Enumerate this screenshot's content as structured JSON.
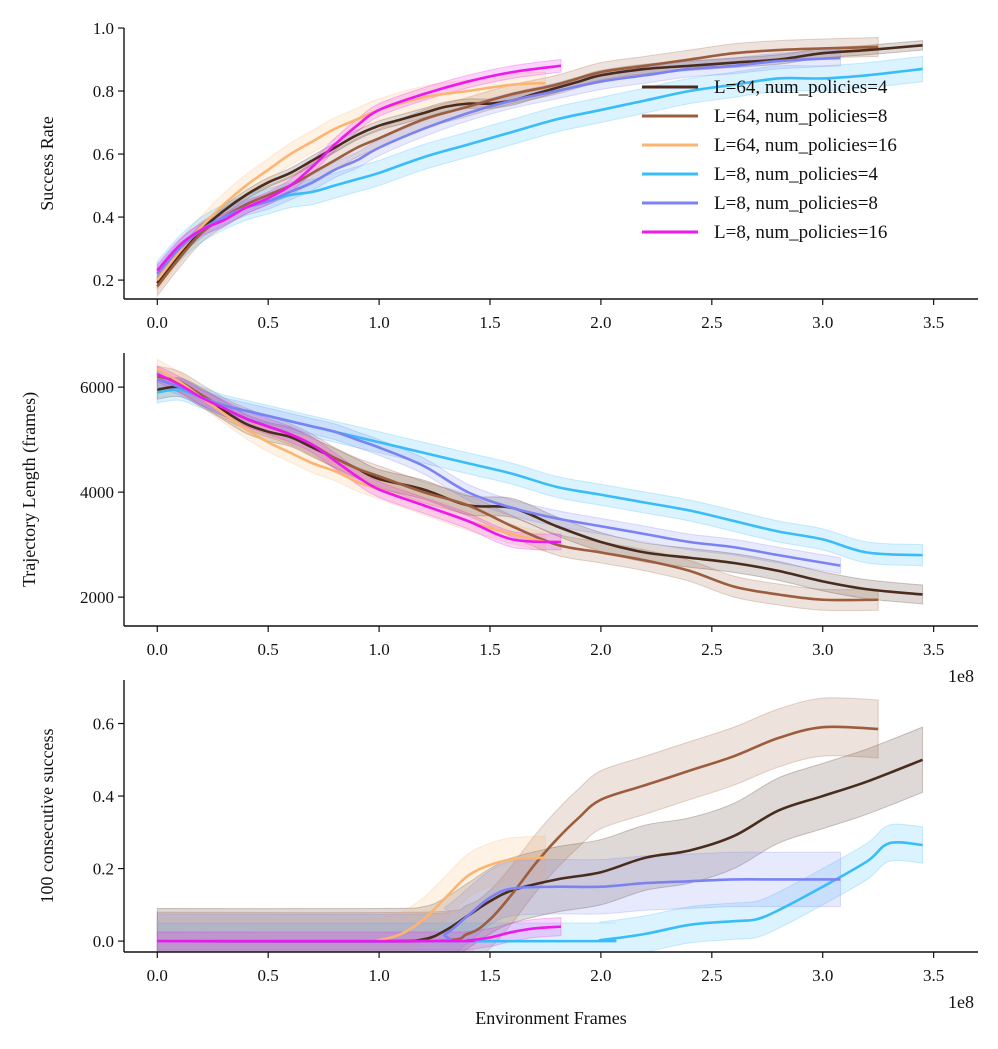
{
  "figure": {
    "xlabel": "Environment Frames",
    "x_multiplier": "1e8",
    "x_ticks": [
      0.0,
      0.5,
      1.0,
      1.5,
      2.0,
      2.5,
      3.0,
      3.5
    ]
  },
  "legend": {
    "location": "right",
    "entries": [
      {
        "label": "L=64, num_policies=4",
        "color": "#4a2c1e"
      },
      {
        "label": "L=64, num_policies=8",
        "color": "#9c5d3e"
      },
      {
        "label": "L=64, num_policies=16",
        "color": "#fcb571"
      },
      {
        "label": "L=8, num_policies=4",
        "color": "#38bdf8"
      },
      {
        "label": "L=8, num_policies=8",
        "color": "#7b83f3"
      },
      {
        "label": "L=8, num_policies=16",
        "color": "#ee18ee"
      }
    ]
  },
  "chart_data": [
    {
      "type": "line",
      "ylabel": "Success Rate",
      "xlim": [
        -0.15,
        3.7
      ],
      "ylim": [
        0.14,
        1.0
      ],
      "y_ticks": [
        0.2,
        0.4,
        0.6,
        0.8,
        1.0
      ],
      "y_tick_labels": [
        "0.2",
        "0.4",
        "0.6",
        "0.8",
        "1.0"
      ],
      "show_x_multiplier": false,
      "series": [
        {
          "name": "L=64, num_policies=4",
          "color": "#4a2c1e",
          "band": 0.015,
          "x": [
            0,
            0.1,
            0.2,
            0.3,
            0.4,
            0.5,
            0.6,
            0.7,
            0.8,
            0.9,
            1.0,
            1.1,
            1.2,
            1.3,
            1.4,
            1.5,
            1.6,
            1.7,
            1.8,
            1.9,
            2.0,
            2.2,
            2.4,
            2.6,
            2.8,
            3.0,
            3.2,
            3.45
          ],
          "y": [
            0.19,
            0.28,
            0.36,
            0.42,
            0.47,
            0.51,
            0.54,
            0.58,
            0.62,
            0.66,
            0.69,
            0.71,
            0.73,
            0.75,
            0.76,
            0.76,
            0.77,
            0.79,
            0.81,
            0.83,
            0.85,
            0.87,
            0.88,
            0.89,
            0.9,
            0.92,
            0.93,
            0.945
          ]
        },
        {
          "name": "L=64, num_policies=8",
          "color": "#9c5d3e",
          "band": 0.03,
          "x": [
            0,
            0.1,
            0.2,
            0.3,
            0.4,
            0.5,
            0.6,
            0.7,
            0.8,
            0.9,
            1.0,
            1.2,
            1.4,
            1.6,
            1.8,
            2.0,
            2.2,
            2.4,
            2.6,
            2.8,
            3.0,
            3.25
          ],
          "y": [
            0.18,
            0.27,
            0.35,
            0.4,
            0.44,
            0.47,
            0.5,
            0.54,
            0.58,
            0.62,
            0.65,
            0.71,
            0.75,
            0.79,
            0.82,
            0.86,
            0.88,
            0.9,
            0.92,
            0.93,
            0.935,
            0.94
          ]
        },
        {
          "name": "L=64, num_policies=16",
          "color": "#fcb571",
          "band": 0.035,
          "x": [
            0,
            0.1,
            0.2,
            0.3,
            0.4,
            0.5,
            0.6,
            0.7,
            0.8,
            0.9,
            1.0,
            1.2,
            1.4,
            1.6,
            1.75
          ],
          "y": [
            0.2,
            0.29,
            0.37,
            0.44,
            0.5,
            0.55,
            0.6,
            0.64,
            0.68,
            0.71,
            0.74,
            0.78,
            0.8,
            0.82,
            0.825
          ]
        },
        {
          "name": "L=8, num_policies=4",
          "color": "#38bdf8",
          "band": 0.04,
          "x": [
            0,
            0.1,
            0.2,
            0.3,
            0.4,
            0.5,
            0.6,
            0.7,
            0.8,
            0.9,
            1.0,
            1.2,
            1.4,
            1.6,
            1.8,
            2.0,
            2.2,
            2.4,
            2.6,
            2.8,
            3.0,
            3.2,
            3.45
          ],
          "y": [
            0.22,
            0.3,
            0.36,
            0.4,
            0.43,
            0.45,
            0.47,
            0.48,
            0.5,
            0.52,
            0.54,
            0.59,
            0.63,
            0.67,
            0.71,
            0.74,
            0.77,
            0.8,
            0.82,
            0.84,
            0.84,
            0.85,
            0.87
          ]
        },
        {
          "name": "L=8, num_policies=8",
          "color": "#7b83f3",
          "band": 0.025,
          "x": [
            0,
            0.1,
            0.2,
            0.3,
            0.4,
            0.5,
            0.6,
            0.7,
            0.8,
            0.9,
            1.0,
            1.2,
            1.4,
            1.6,
            1.8,
            2.0,
            2.2,
            2.4,
            2.6,
            2.8,
            3.08
          ],
          "y": [
            0.22,
            0.3,
            0.36,
            0.4,
            0.43,
            0.45,
            0.48,
            0.51,
            0.55,
            0.58,
            0.62,
            0.68,
            0.73,
            0.77,
            0.8,
            0.83,
            0.85,
            0.87,
            0.88,
            0.895,
            0.905
          ]
        },
        {
          "name": "L=8, num_policies=16",
          "color": "#ee18ee",
          "band": 0.02,
          "x": [
            0,
            0.1,
            0.2,
            0.3,
            0.4,
            0.5,
            0.6,
            0.7,
            0.8,
            0.9,
            1.0,
            1.2,
            1.4,
            1.6,
            1.82
          ],
          "y": [
            0.23,
            0.31,
            0.36,
            0.39,
            0.43,
            0.46,
            0.5,
            0.56,
            0.63,
            0.69,
            0.74,
            0.79,
            0.83,
            0.86,
            0.88
          ]
        }
      ]
    },
    {
      "type": "line",
      "ylabel": "Trajectory Length (frames)",
      "xlim": [
        -0.15,
        3.7
      ],
      "ylim": [
        1450,
        6650
      ],
      "y_ticks": [
        2000,
        4000,
        6000
      ],
      "y_tick_labels": [
        "2000",
        "4000",
        "6000"
      ],
      "show_x_multiplier": true,
      "series": [
        {
          "name": "L=64, num_policies=4",
          "color": "#4a2c1e",
          "band": 180,
          "x": [
            0,
            0.1,
            0.2,
            0.3,
            0.4,
            0.5,
            0.6,
            0.7,
            0.8,
            0.9,
            1.0,
            1.2,
            1.4,
            1.6,
            1.8,
            2.0,
            2.2,
            2.4,
            2.6,
            2.8,
            3.0,
            3.2,
            3.45
          ],
          "y": [
            5950,
            6000,
            5800,
            5550,
            5300,
            5150,
            5050,
            4850,
            4650,
            4450,
            4250,
            4050,
            3750,
            3700,
            3350,
            3050,
            2850,
            2750,
            2650,
            2500,
            2300,
            2150,
            2050
          ]
        },
        {
          "name": "L=64, num_policies=8",
          "color": "#9c5d3e",
          "band": 200,
          "x": [
            0,
            0.1,
            0.2,
            0.3,
            0.4,
            0.5,
            0.6,
            0.7,
            0.8,
            0.9,
            1.0,
            1.2,
            1.4,
            1.6,
            1.8,
            2.0,
            2.2,
            2.4,
            2.6,
            2.8,
            3.0,
            3.25
          ],
          "y": [
            6200,
            6100,
            5850,
            5600,
            5400,
            5250,
            5100,
            4900,
            4650,
            4450,
            4300,
            4000,
            3750,
            3350,
            3000,
            2850,
            2700,
            2500,
            2200,
            2050,
            1950,
            1950
          ]
        },
        {
          "name": "L=64, num_policies=16",
          "color": "#fcb571",
          "band": 180,
          "x": [
            0,
            0.1,
            0.2,
            0.3,
            0.4,
            0.5,
            0.6,
            0.7,
            0.8,
            0.9,
            1.0,
            1.2,
            1.4,
            1.6,
            1.75
          ],
          "y": [
            6350,
            6100,
            5800,
            5500,
            5200,
            4950,
            4750,
            4550,
            4400,
            4200,
            4050,
            3750,
            3450,
            3200,
            3050
          ]
        },
        {
          "name": "L=8, num_policies=4",
          "color": "#38bdf8",
          "band": 200,
          "x": [
            0,
            0.1,
            0.2,
            0.3,
            0.4,
            0.5,
            0.6,
            0.7,
            0.8,
            0.9,
            1.0,
            1.2,
            1.4,
            1.6,
            1.8,
            2.0,
            2.2,
            2.4,
            2.6,
            2.8,
            3.0,
            3.2,
            3.45
          ],
          "y": [
            5900,
            5950,
            5800,
            5650,
            5550,
            5450,
            5350,
            5250,
            5150,
            5050,
            4950,
            4750,
            4550,
            4350,
            4100,
            3950,
            3800,
            3650,
            3450,
            3250,
            3100,
            2850,
            2800
          ]
        },
        {
          "name": "L=8, num_policies=8",
          "color": "#7b83f3",
          "band": 150,
          "x": [
            0,
            0.1,
            0.2,
            0.3,
            0.4,
            0.5,
            0.6,
            0.7,
            0.8,
            0.9,
            1.0,
            1.2,
            1.4,
            1.6,
            1.8,
            2.0,
            2.2,
            2.4,
            2.6,
            2.8,
            3.08
          ],
          "y": [
            6150,
            6000,
            5800,
            5650,
            5550,
            5450,
            5350,
            5250,
            5150,
            5000,
            4850,
            4500,
            4000,
            3700,
            3500,
            3350,
            3200,
            3050,
            2950,
            2800,
            2600
          ]
        },
        {
          "name": "L=8, num_policies=16",
          "color": "#ee18ee",
          "band": 150,
          "x": [
            0,
            0.1,
            0.2,
            0.3,
            0.4,
            0.5,
            0.6,
            0.7,
            0.8,
            0.9,
            1.0,
            1.2,
            1.4,
            1.6,
            1.82
          ],
          "y": [
            6250,
            6050,
            5800,
            5600,
            5400,
            5250,
            5100,
            4900,
            4600,
            4300,
            4050,
            3750,
            3450,
            3100,
            3050
          ]
        }
      ]
    },
    {
      "type": "line",
      "ylabel": "100 consecutive success",
      "xlabel": "Environment Frames",
      "xlim": [
        -0.15,
        3.7
      ],
      "ylim": [
        -0.03,
        0.72
      ],
      "y_ticks": [
        0.0,
        0.2,
        0.4,
        0.6
      ],
      "y_tick_labels": [
        "0.0",
        "0.2",
        "0.4",
        "0.6"
      ],
      "show_x_multiplier": true,
      "series": [
        {
          "name": "L=64, num_policies=4",
          "color": "#4a2c1e",
          "band": 0.09,
          "x": [
            0,
            1.0,
            1.2,
            1.3,
            1.4,
            1.5,
            1.6,
            1.8,
            2.0,
            2.2,
            2.4,
            2.6,
            2.8,
            3.0,
            3.2,
            3.45
          ],
          "y": [
            0,
            0,
            0.005,
            0.03,
            0.07,
            0.11,
            0.14,
            0.17,
            0.19,
            0.23,
            0.25,
            0.29,
            0.36,
            0.4,
            0.44,
            0.5
          ]
        },
        {
          "name": "L=64, num_policies=8",
          "color": "#9c5d3e",
          "band": 0.08,
          "x": [
            0,
            1.2,
            1.4,
            1.5,
            1.6,
            1.7,
            1.8,
            1.9,
            2.0,
            2.2,
            2.4,
            2.6,
            2.8,
            3.0,
            3.25
          ],
          "y": [
            0,
            0,
            0.02,
            0.06,
            0.13,
            0.21,
            0.28,
            0.34,
            0.39,
            0.43,
            0.47,
            0.51,
            0.56,
            0.59,
            0.585
          ]
        },
        {
          "name": "L=64, num_policies=16",
          "color": "#fcb571",
          "band": 0.06,
          "x": [
            0,
            0.9,
            1.0,
            1.1,
            1.2,
            1.3,
            1.4,
            1.5,
            1.6,
            1.75
          ],
          "y": [
            0,
            0,
            0.003,
            0.02,
            0.06,
            0.12,
            0.18,
            0.21,
            0.225,
            0.23
          ]
        },
        {
          "name": "L=8, num_policies=4",
          "color": "#38bdf8",
          "band": 0.05,
          "x": [
            0,
            1.9,
            2.0,
            2.2,
            2.4,
            2.6,
            2.7,
            2.8,
            3.0,
            3.2,
            3.3,
            3.45
          ],
          "y": [
            0,
            0,
            0.003,
            0.02,
            0.045,
            0.055,
            0.06,
            0.085,
            0.15,
            0.22,
            0.27,
            0.265
          ]
        },
        {
          "name": "L=8, num_policies=8",
          "color": "#7b83f3",
          "band": 0.075,
          "x": [
            0,
            1.2,
            1.3,
            1.4,
            1.5,
            1.6,
            1.8,
            2.0,
            2.2,
            2.4,
            2.6,
            2.8,
            3.08
          ],
          "y": [
            0,
            0,
            0.02,
            0.07,
            0.12,
            0.145,
            0.15,
            0.15,
            0.16,
            0.165,
            0.17,
            0.17,
            0.17
          ]
        },
        {
          "name": "L=8, num_policies=16",
          "color": "#ee18ee",
          "band": 0.025,
          "x": [
            0,
            1.3,
            1.4,
            1.5,
            1.6,
            1.7,
            1.82
          ],
          "y": [
            0,
            0,
            0.002,
            0.01,
            0.025,
            0.035,
            0.04
          ]
        }
      ]
    }
  ]
}
